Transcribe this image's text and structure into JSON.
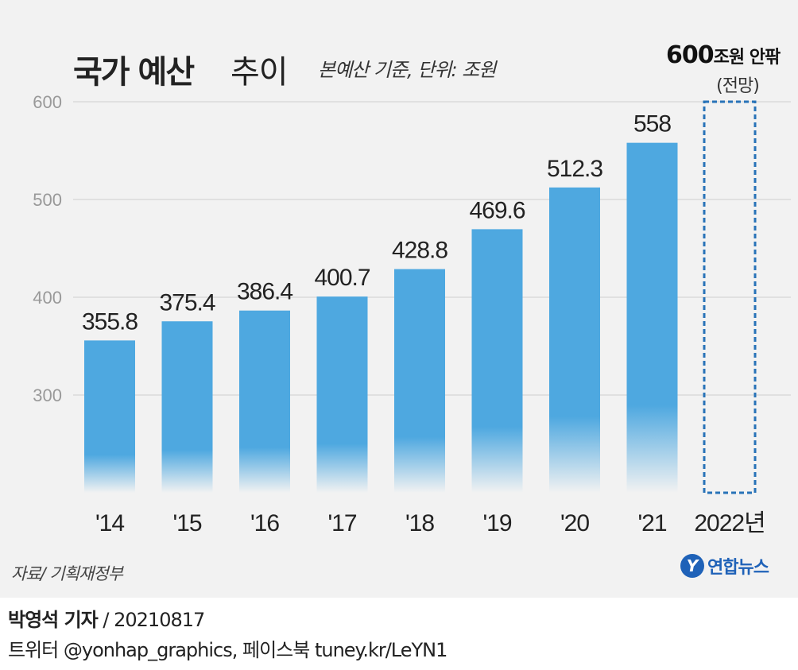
{
  "header": {
    "title_bold": "국가 예산",
    "title_light": "추이",
    "note": "본예산 기준, 단위: 조원"
  },
  "forecast": {
    "value": "600",
    "label": "조원 안팎",
    "sub": "(전망)"
  },
  "source": "자료/ 기획재정부",
  "logo": {
    "mark": "Y",
    "text": "연합뉴스"
  },
  "credit": {
    "reporter": "박영석 기자",
    "date": "/ 20210817"
  },
  "social": "트위터 @yonhap_graphics, 페이스북 tuney.kr/LeYN1",
  "chart_data": {
    "type": "bar",
    "title": "국가 예산 추이",
    "categories": [
      "'14",
      "'15",
      "'16",
      "'17",
      "'18",
      "'19",
      "'20",
      "'21",
      "2022년"
    ],
    "values": [
      355.8,
      375.4,
      386.4,
      400.7,
      428.8,
      469.6,
      512.3,
      558,
      null
    ],
    "data_labels": [
      "355.8",
      "375.4",
      "386.4",
      "400.7",
      "428.8",
      "469.6",
      "512.3",
      "558",
      ""
    ],
    "forecast": {
      "category": "2022년",
      "value": 600
    },
    "y_ticks": [
      300,
      400,
      500,
      600
    ],
    "ylim": [
      200,
      600
    ],
    "grid": true,
    "colors": {
      "bar": "#4ea8e0",
      "bar_fade": "#f2f2f2",
      "forecast_border": "#2873b8",
      "grid": "#cfcfcf"
    }
  }
}
